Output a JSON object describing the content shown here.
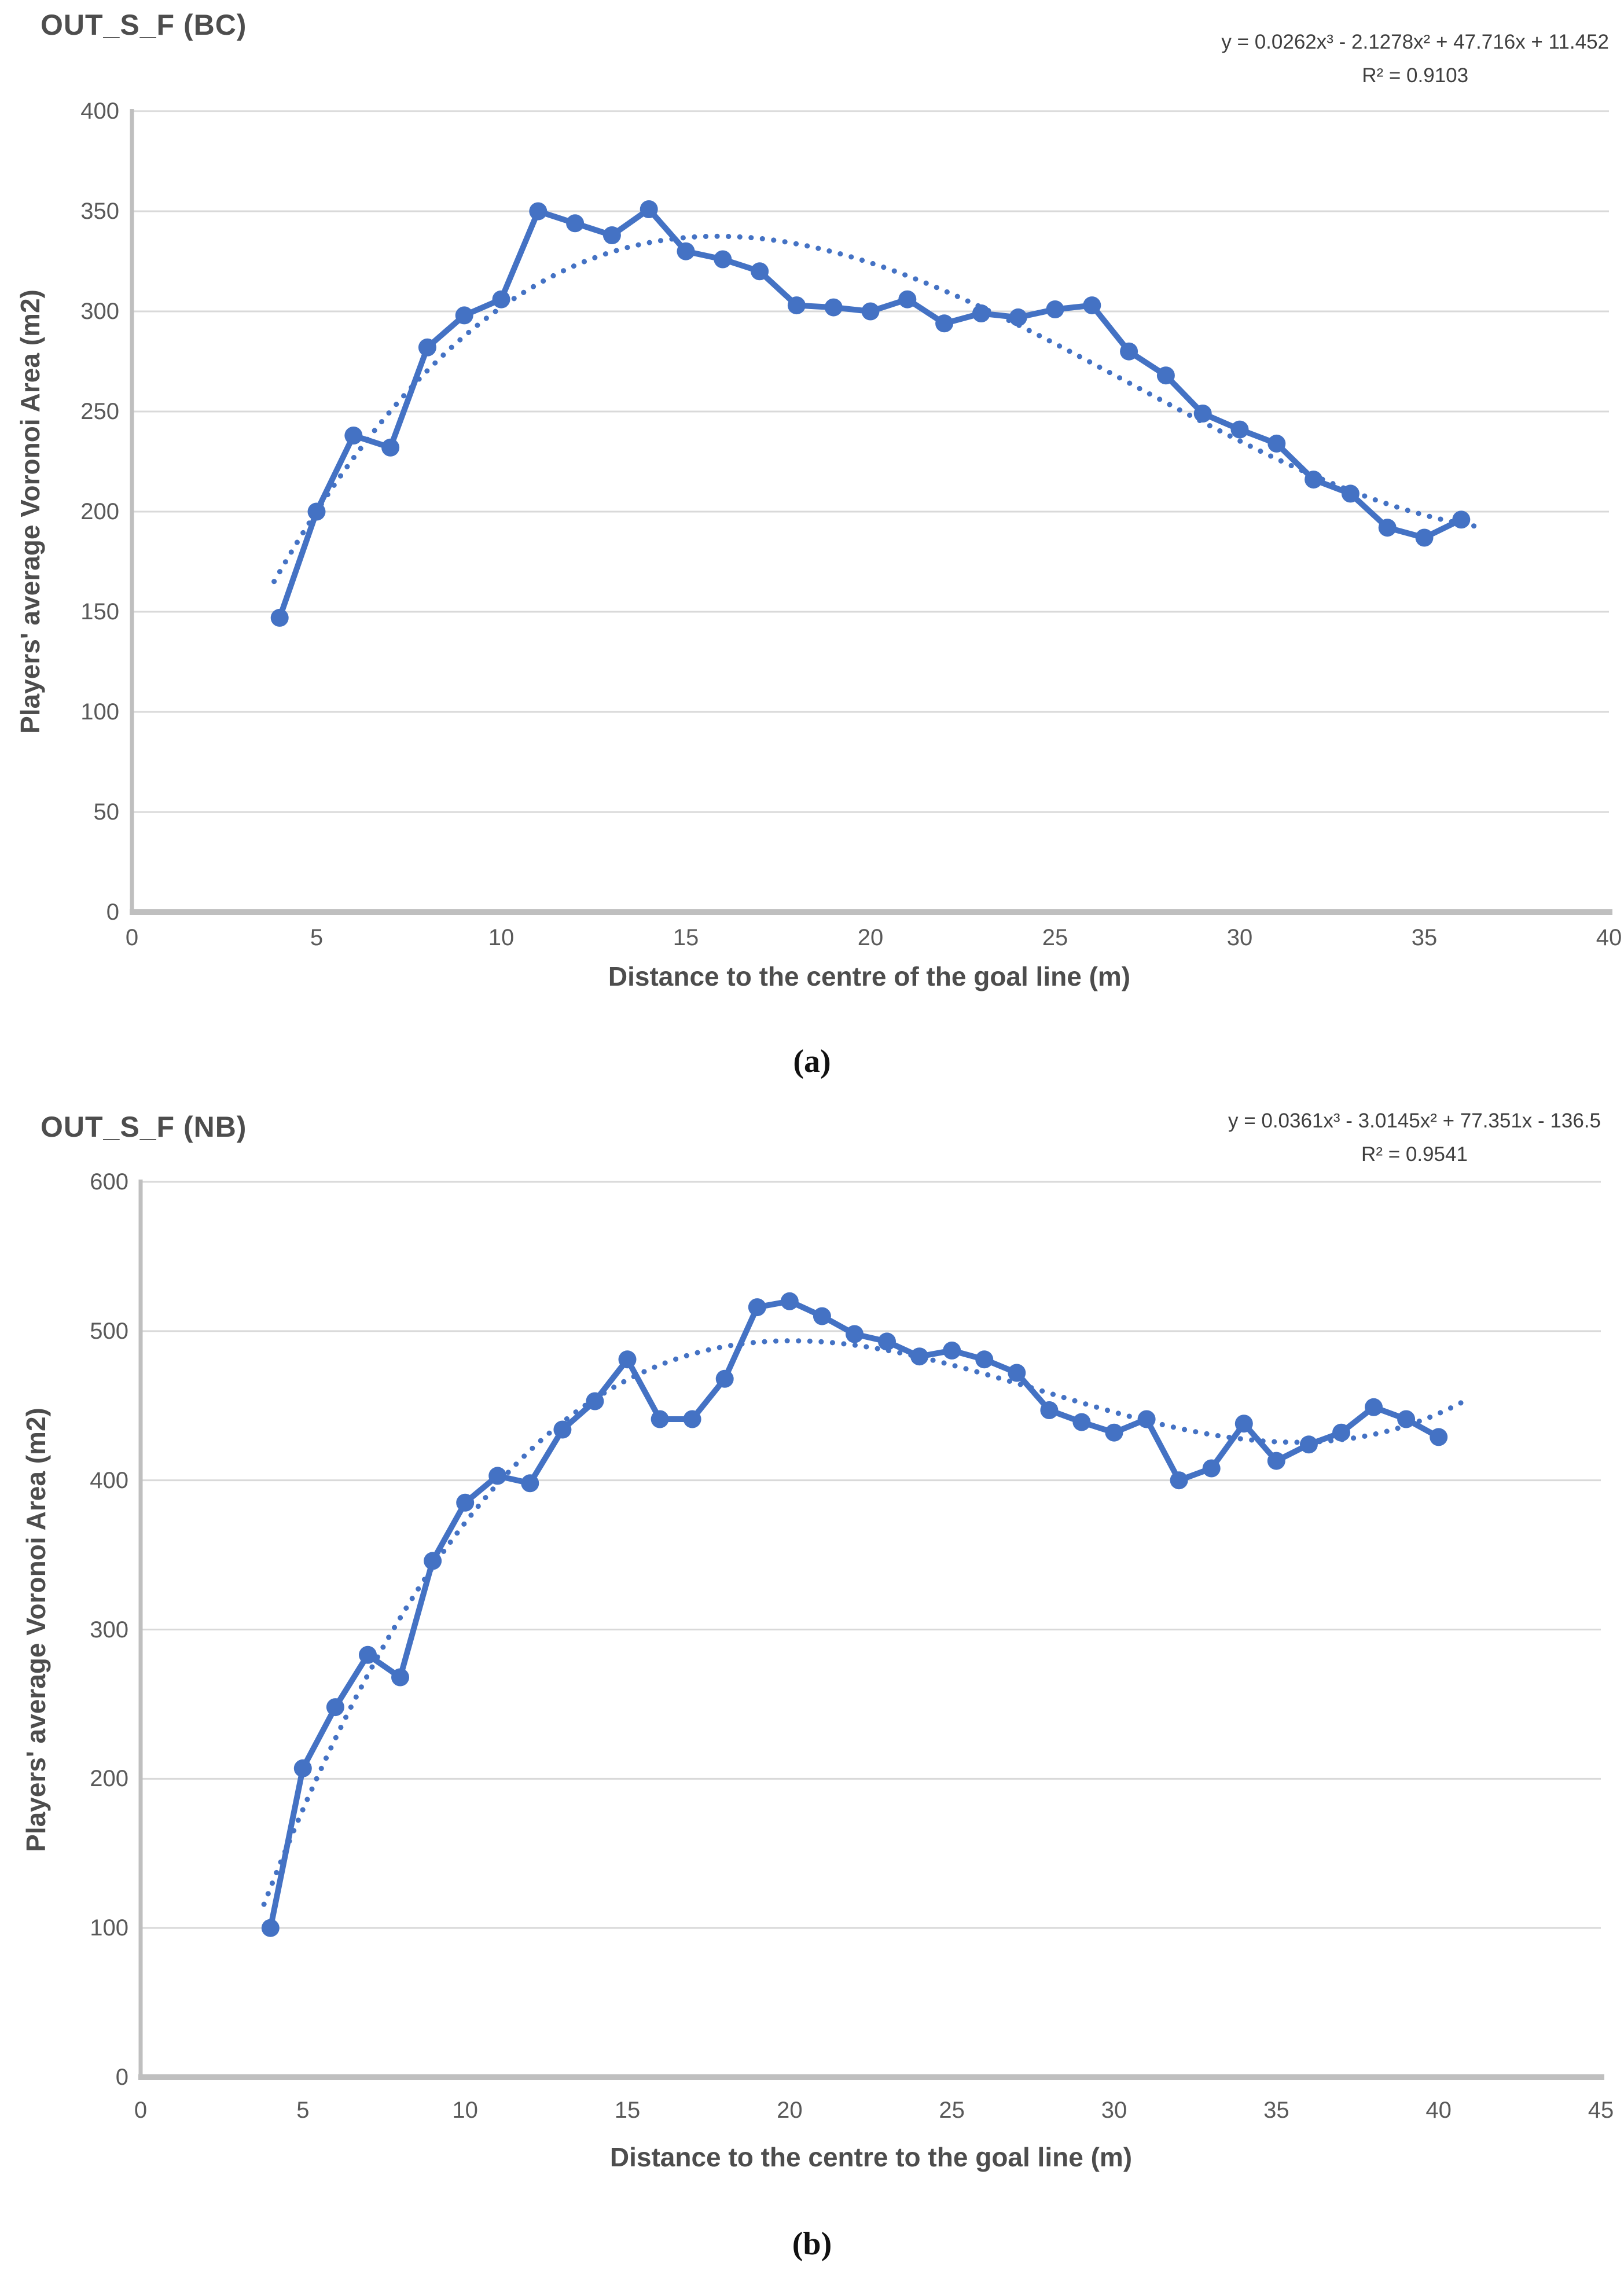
{
  "page": {
    "background": "#FFFFFF"
  },
  "colors": {
    "series_blue": "#4472C4",
    "gridline": "#D9D9D9",
    "axis_line": "#BFBFBF",
    "tick_text": "#595959",
    "title_text": "#4d4d4d",
    "equation_text": "#3f3f3f",
    "caption_text": "#111111"
  },
  "chart_data": [
    {
      "type": "line",
      "panel": "a",
      "title": "OUT_S_F (BC)",
      "equation": "y = 0.0262x³ - 2.1278x² + 47.716x + 11.452",
      "r_squared": "R² = 0.9103",
      "xlabel": "Distance to the centre of the goal line (m)",
      "ylabel": "Players' average Voronoi Area (m2)",
      "caption": "(a)",
      "xlim": [
        0,
        40
      ],
      "ylim": [
        0,
        400
      ],
      "xtick_step": 5,
      "ytick_step": 50,
      "grid": true,
      "legend": "none",
      "series": [
        {
          "name": "observed-voronoi-area",
          "style": "solid-markers",
          "x": [
            4,
            5,
            6,
            7,
            8,
            9,
            10,
            11,
            12,
            13,
            14,
            15,
            16,
            17,
            18,
            19,
            20,
            21,
            22,
            23,
            24,
            25,
            26,
            27,
            28,
            29,
            30,
            31,
            32,
            33,
            34,
            35,
            36
          ],
          "y": [
            147,
            200,
            238,
            232,
            282,
            298,
            306,
            350,
            344,
            338,
            351,
            330,
            326,
            320,
            303,
            302,
            300,
            306,
            294,
            299,
            297,
            301,
            303,
            280,
            268,
            249,
            241,
            234,
            216,
            209,
            192,
            187,
            196
          ]
        },
        {
          "name": "cubic-trendline",
          "style": "dotted",
          "coeffs": [
            0.0262,
            -2.1278,
            47.716,
            11.452
          ],
          "x_range": [
            3.85,
            36.4
          ]
        }
      ]
    },
    {
      "type": "line",
      "panel": "b",
      "title": "OUT_S_F (NB)",
      "equation": "y = 0.0361x³ - 3.0145x² + 77.351x - 136.5",
      "r_squared": "R² = 0.9541",
      "xlabel": "Distance to the centre to the goal line (m)",
      "ylabel": "Players' average Voronoi Area (m2)",
      "caption": "(b)",
      "xlim": [
        0,
        45
      ],
      "ylim": [
        0,
        600
      ],
      "xtick_step": 5,
      "ytick_step": 100,
      "grid": true,
      "legend": "none",
      "series": [
        {
          "name": "observed-voronoi-area",
          "style": "solid-markers",
          "x": [
            4,
            5,
            6,
            7,
            8,
            9,
            10,
            11,
            12,
            13,
            14,
            15,
            16,
            17,
            18,
            19,
            20,
            21,
            22,
            23,
            24,
            25,
            26,
            27,
            28,
            29,
            30,
            31,
            32,
            33,
            34,
            35,
            36,
            37,
            38,
            39,
            40
          ],
          "y": [
            100,
            207,
            248,
            283,
            268,
            346,
            385,
            403,
            398,
            434,
            453,
            481,
            441,
            441,
            468,
            516,
            520,
            510,
            498,
            493,
            483,
            487,
            481,
            472,
            447,
            439,
            432,
            441,
            400,
            408,
            438,
            413,
            424,
            432,
            449,
            441,
            429
          ]
        },
        {
          "name": "cubic-trendline",
          "style": "dotted",
          "coeffs": [
            0.0361,
            -3.0145,
            77.351,
            -136.5
          ],
          "x_range": [
            3.8,
            40.8
          ]
        }
      ]
    }
  ]
}
